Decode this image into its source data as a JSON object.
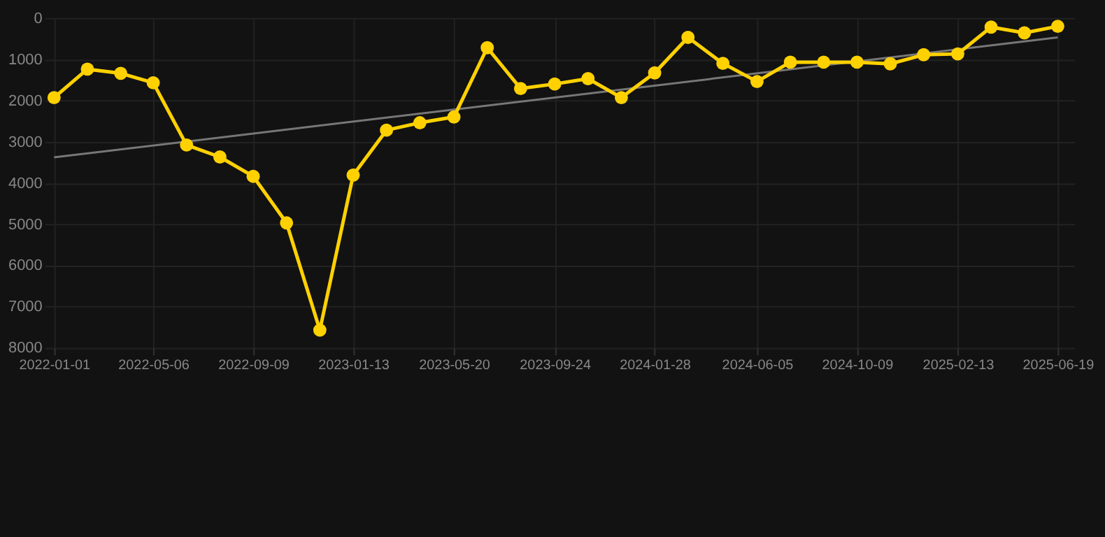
{
  "chart_data": {
    "type": "line",
    "x": [
      "2022-01-01",
      "2022-02-12",
      "2022-03-26",
      "2022-05-06",
      "2022-06-17",
      "2022-07-29",
      "2022-09-09",
      "2022-10-21",
      "2022-12-02",
      "2023-01-13",
      "2023-02-24",
      "2023-04-07",
      "2023-05-20",
      "2023-07-01",
      "2023-08-12",
      "2023-09-24",
      "2023-11-05",
      "2023-12-17",
      "2024-01-28",
      "2024-03-10",
      "2024-04-23",
      "2024-06-05",
      "2024-07-17",
      "2024-08-28",
      "2024-10-09",
      "2024-11-20",
      "2025-01-01",
      "2025-02-13",
      "2025-03-27",
      "2025-05-08",
      "2025-06-19"
    ],
    "series": [
      {
        "color": "#ffd100",
        "marker": "circle",
        "values": [
          1930,
          1240,
          1340,
          1570,
          3080,
          3370,
          3840,
          4970,
          7570,
          3810,
          2720,
          2540,
          2400,
          720,
          1710,
          1600,
          1470,
          1930,
          1330,
          470,
          1100,
          1540,
          1070,
          1070,
          1070,
          1110,
          890,
          870,
          220,
          360,
          200
        ]
      },
      {
        "type": "line",
        "color": "#777777",
        "marker": "none",
        "x": [
          "2022-01-01",
          "2025-06-19"
        ],
        "values": [
          3380,
          470
        ]
      }
    ],
    "xlim": [
      "2021-12-20",
      "2025-07-10"
    ],
    "xticks": [
      {
        "value": "2022-01-01",
        "label": "2022-01-01"
      },
      {
        "value": "2022-05-06",
        "label": "2022-05-06"
      },
      {
        "value": "2022-09-09",
        "label": "2022-09-09"
      },
      {
        "value": "2023-01-13",
        "label": "2023-01-13"
      },
      {
        "value": "2023-05-20",
        "label": "2023-05-20"
      },
      {
        "value": "2023-09-24",
        "label": "2023-09-24"
      },
      {
        "value": "2024-01-28",
        "label": "2024-01-28"
      },
      {
        "value": "2024-06-05",
        "label": "2024-06-05"
      },
      {
        "value": "2024-10-09",
        "label": "2024-10-09"
      },
      {
        "value": "2025-02-13",
        "label": "2025-02-13"
      },
      {
        "value": "2025-06-19",
        "label": "2025-06-19"
      }
    ],
    "ylim": [
      8000,
      0
    ],
    "yticks": [
      0,
      1000,
      2000,
      3000,
      4000,
      5000,
      6000,
      7000,
      8000
    ],
    "grid": true,
    "line_style": "solid"
  }
}
